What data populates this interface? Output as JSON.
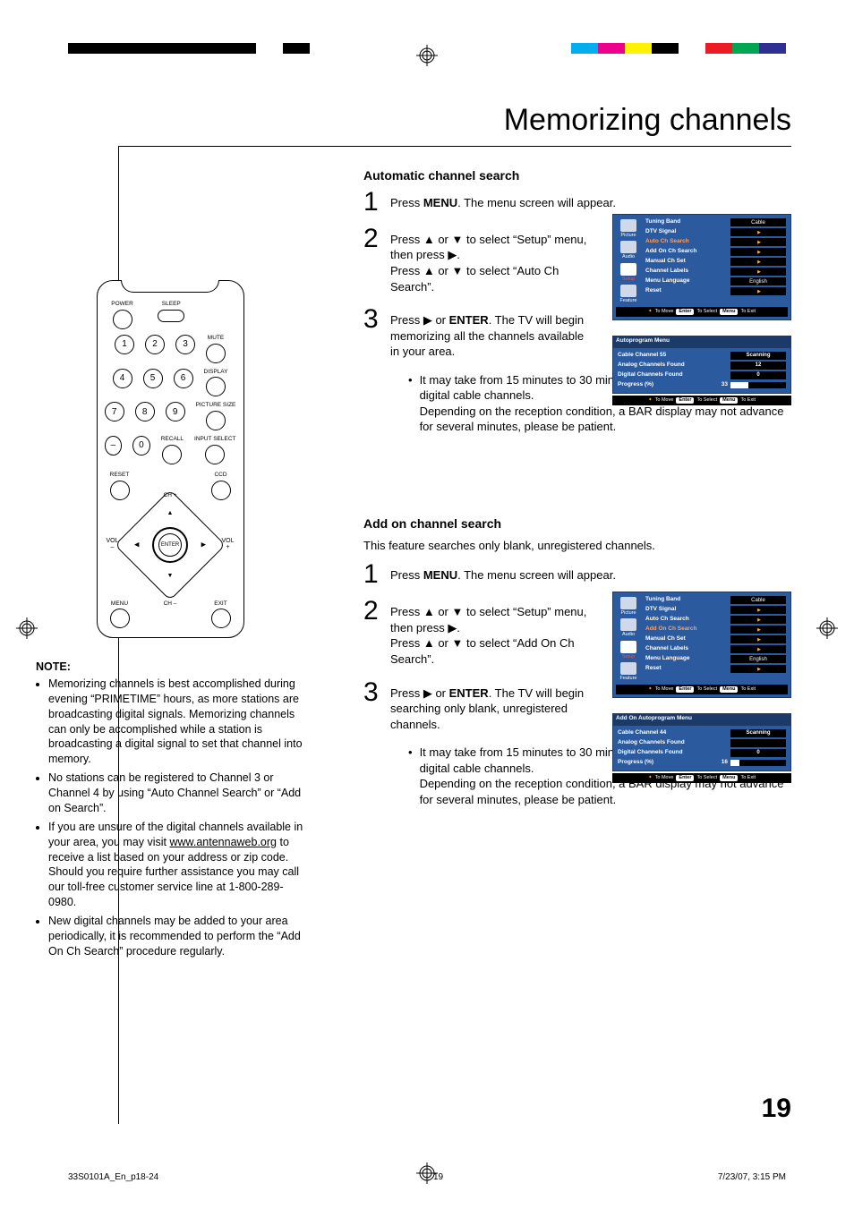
{
  "page_title": "Memorizing channels",
  "page_number": "19",
  "color_bars": {
    "left": [
      "#000000",
      "#000000",
      "#000000",
      "#000000",
      "#000000",
      "#000000",
      "#000000",
      "#ffffff",
      "#000000"
    ],
    "right": [
      "#00aeef",
      "#ec008c",
      "#fff200",
      "#000000",
      "#ffffff",
      "#ed1c24",
      "#00a651",
      "#2e3192"
    ]
  },
  "remote": {
    "labels": {
      "power": "POWER",
      "sleep": "SLEEP",
      "mute": "MUTE",
      "display": "DISPLAY",
      "picture_size": "PICTURE SIZE",
      "recall": "RECALL",
      "input_select": "INPUT SELECT",
      "reset": "RESET",
      "ch_plus": "CH +",
      "ch_minus": "CH –",
      "ccd": "CCD",
      "vol_plus": "VOL\n+",
      "vol_minus": "VOL\n–",
      "enter": "ENTER",
      "menu": "MENU",
      "exit": "EXIT"
    },
    "digits": [
      "1",
      "2",
      "3",
      "4",
      "5",
      "6",
      "7",
      "8",
      "9",
      "–",
      "0"
    ]
  },
  "notes": {
    "heading": "NOTE:",
    "items": [
      "Memorizing channels is best accomplished during evening “PRIMETIME” hours, as more stations are broadcasting digital signals. Memorizing channels can only be accomplished while a station is broadcasting a digital signal to set that channel into memory.",
      "No stations can be registered to Channel 3 or Channel 4 by using “Auto Channel Search” or “Add on Search”.",
      "If you are unsure of the digital channels available in your area, you may visit www.antennaweb.org to receive a list based on your address or zip code. Should you require further assistance you may call our toll-free customer service line at 1-800-289-0980.",
      "New digital channels may be added to your area periodically, it is recommended to perform the “Add On Ch Search” procedure regularly."
    ]
  },
  "section_auto": {
    "heading": "Automatic channel search",
    "steps": [
      {
        "n": "1",
        "html": "Press <b>MENU</b>.  The menu screen will appear."
      },
      {
        "n": "2",
        "html": "Press ▲ or ▼ to select “Setup” menu, then press ▶.<br>Press ▲ or ▼ to select “Auto Ch Search”."
      },
      {
        "n": "3",
        "html": "Press  ▶ or <b>ENTER</b>. The TV will begin memorizing all the channels available in your area."
      }
    ],
    "bullet": "It may take from 15 minutes to 30 minutes to complete memorizing digital cable channels.\nDepending on the reception condition, a BAR display may not advance for several minutes, please be patient."
  },
  "section_addon": {
    "heading": "Add on channel search",
    "subtitle": "This feature searches only blank, unregistered channels.",
    "steps": [
      {
        "n": "1",
        "html": "Press <b>MENU</b>. The menu screen will appear."
      },
      {
        "n": "2",
        "html": "Press ▲ or ▼ to select “Setup” menu, then press ▶.<br>Press ▲ or ▼ to select “Add On Ch Search”."
      },
      {
        "n": "3",
        "html": "Press  ▶ or <b>ENTER</b>. The TV will begin searching only blank, unregistered channels."
      }
    ],
    "bullet": "It may take from 15 minutes to 30 minutes to complete memorizing digital cable channels.\nDepending on the reception condition, a BAR display may not advance for several minutes, please be patient."
  },
  "osd_setup": {
    "tabs": [
      {
        "label": "Picture",
        "active": false
      },
      {
        "label": "Audio",
        "active": false
      },
      {
        "label": "Setup",
        "active": true
      },
      {
        "label": "Feature",
        "active": false
      }
    ],
    "rows_auto_highlight": "Auto Ch Search",
    "rows_addon_highlight": "Add On Ch Search",
    "rows": [
      {
        "k": "Tuning Band",
        "v": "Cable",
        "type": "text"
      },
      {
        "k": "DTV Signal",
        "v": "",
        "type": "arrow"
      },
      {
        "k": "Auto Ch Search",
        "v": "",
        "type": "arrow"
      },
      {
        "k": "Add On Ch Search",
        "v": "",
        "type": "arrow"
      },
      {
        "k": "Manual Ch Set",
        "v": "",
        "type": "arrow"
      },
      {
        "k": "Channel Labels",
        "v": "",
        "type": "arrow"
      },
      {
        "k": "Menu Language",
        "v": "English",
        "type": "text"
      },
      {
        "k": "Reset",
        "v": "",
        "type": "arrow"
      }
    ],
    "footer": {
      "move": "To Move",
      "enter": "Enter",
      "select": "To Select",
      "menu": "Menu",
      "exit": "To Exit"
    }
  },
  "osd_autoprog": {
    "title": "Autoprogram Menu",
    "rows": [
      {
        "k": "Cable Channel 55",
        "v": "Scanning"
      },
      {
        "k": "Analog Channels Found",
        "v": "12"
      },
      {
        "k": "Digital Channels Found",
        "v": "0"
      }
    ],
    "progress": {
      "label": "Progress (%)",
      "value": "33",
      "percent": 33
    }
  },
  "osd_addonprog": {
    "title": "Add On Autoprogram Menu",
    "rows": [
      {
        "k": "Cable Channel 44",
        "v": "Scanning"
      },
      {
        "k": "Analog Channels Found",
        "v": ""
      },
      {
        "k": "Digital Channels Found",
        "v": "0"
      }
    ],
    "progress": {
      "label": "Progress (%)",
      "value": "16",
      "percent": 16
    }
  },
  "footer": {
    "file": "33S0101A_En_p18-24",
    "page": "19",
    "date": "7/23/07, 3:15 PM"
  }
}
